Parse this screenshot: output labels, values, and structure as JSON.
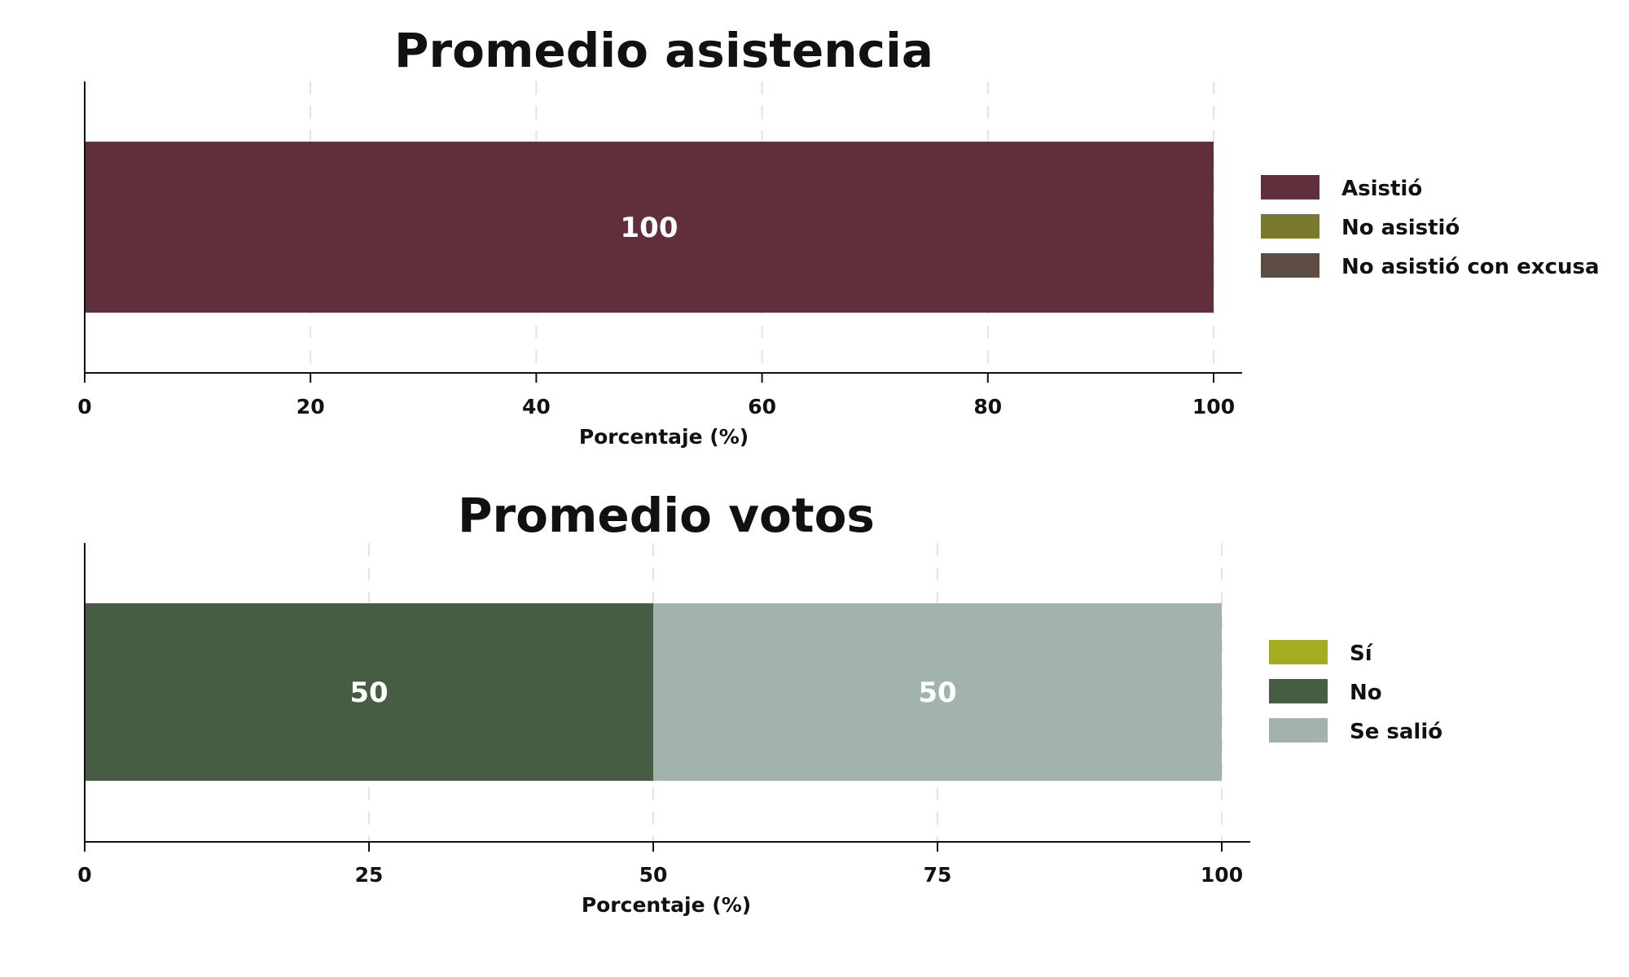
{
  "chart_data": [
    {
      "type": "bar",
      "orientation": "horizontal",
      "stacked": true,
      "title": "Promedio asistencia",
      "xlabel": "Porcentaje (%)",
      "ylabel": "",
      "xlim": [
        0,
        100
      ],
      "xticks": [
        "0",
        "20",
        "40",
        "60",
        "80",
        "100"
      ],
      "grid": "vertical-dashed",
      "legend_position": "right",
      "series": [
        {
          "name": "Asistió",
          "color": "#612f3c",
          "value": 100,
          "label": "100"
        },
        {
          "name": "No asistió",
          "color": "#7a7a2f",
          "value": 0,
          "label": ""
        },
        {
          "name": "No asistió con excusa",
          "color": "#5b4d41",
          "value": 0,
          "label": ""
        }
      ]
    },
    {
      "type": "bar",
      "orientation": "horizontal",
      "stacked": true,
      "title": "Promedio votos",
      "xlabel": "Porcentaje (%)",
      "ylabel": "",
      "xlim": [
        0,
        100
      ],
      "xticks": [
        "0",
        "25",
        "50",
        "75",
        "100"
      ],
      "grid": "vertical-dashed",
      "legend_position": "right",
      "series": [
        {
          "name": "Sí",
          "color": "#a3ad1f",
          "value": 0,
          "label": ""
        },
        {
          "name": "No",
          "color": "#475d43",
          "value": 50,
          "label": "50"
        },
        {
          "name": "Se salió",
          "color": "#a2b3ad",
          "value": 50,
          "label": "50"
        }
      ]
    }
  ]
}
